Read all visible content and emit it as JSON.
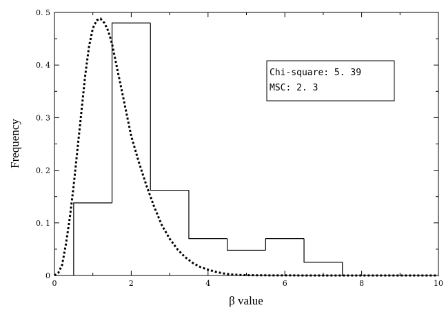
{
  "chart_data": {
    "type": "histogram-with-curve",
    "xlabel": "β value",
    "ylabel": "Frequency",
    "xlim": [
      0,
      10
    ],
    "ylim": [
      0,
      0.5
    ],
    "x_ticks": [
      0,
      2,
      4,
      6,
      8,
      10
    ],
    "x_tick_labels": [
      "0",
      "2",
      "4",
      "6",
      "8",
      "10"
    ],
    "y_ticks": [
      0,
      0.1,
      0.2,
      0.3,
      0.4,
      0.5
    ],
    "y_tick_labels": [
      "0",
      "0. 1",
      "0. 2",
      "0. 3",
      "0. 4",
      "0. 5"
    ],
    "grid": false,
    "legend_position": "top-right",
    "annotation": [
      "Chi-square: 5. 39",
      "MSC: 2. 3"
    ],
    "histogram": {
      "bin_edges": [
        0.5,
        1.5,
        2.5,
        3.5,
        4.5,
        5.5,
        6.5,
        7.5
      ],
      "values": [
        0.138,
        0.48,
        0.162,
        0.07,
        0.048,
        0.07,
        0.025
      ]
    },
    "fitted_curve": {
      "style": "dotted",
      "x": [
        0,
        0.1,
        0.2,
        0.3,
        0.4,
        0.5,
        0.6,
        0.7,
        0.8,
        0.9,
        1.0,
        1.1,
        1.2,
        1.3,
        1.4,
        1.5,
        1.6,
        1.7,
        1.8,
        1.9,
        2.0,
        2.2,
        2.4,
        2.6,
        2.8,
        3.0,
        3.2,
        3.4,
        3.6,
        3.8,
        4.0,
        4.2,
        4.4,
        4.6,
        4.8,
        5.0,
        5.5,
        6.0,
        7.0,
        8.0,
        9.0,
        10.0
      ],
      "y": [
        0,
        0.005,
        0.02,
        0.06,
        0.11,
        0.17,
        0.24,
        0.31,
        0.38,
        0.435,
        0.47,
        0.485,
        0.488,
        0.48,
        0.465,
        0.44,
        0.405,
        0.37,
        0.335,
        0.3,
        0.265,
        0.215,
        0.17,
        0.13,
        0.095,
        0.07,
        0.05,
        0.035,
        0.024,
        0.016,
        0.011,
        0.007,
        0.004,
        0.002,
        0.001,
        0.0005,
        0.0002,
        0.0001,
        0,
        0,
        0,
        0
      ]
    }
  }
}
